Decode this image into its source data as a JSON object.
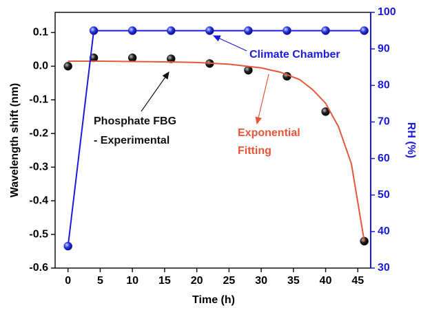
{
  "chart_data": {
    "type": "line",
    "x_label": "Time (h)",
    "y_label": "Wavelength shift (nm)",
    "y2_label": "RH (%)",
    "xlim": [
      -2,
      47
    ],
    "xticks": [
      0,
      5,
      10,
      15,
      20,
      25,
      30,
      35,
      40,
      45
    ],
    "ylim": [
      -0.6,
      0.16
    ],
    "yticks": [
      -0.6,
      -0.5,
      -0.4,
      -0.3,
      -0.2,
      -0.1,
      {
        "value": 0,
        "label": "0.0"
      },
      0.1
    ],
    "y2lim": [
      30,
      100
    ],
    "y2ticks": [
      30,
      40,
      50,
      60,
      70,
      80,
      90,
      100
    ],
    "series": [
      {
        "color": "#111111",
        "style": "markers",
        "x": [
          0,
          4,
          10,
          16,
          22,
          28,
          34,
          40,
          46
        ],
        "values": [
          0.0,
          0.025,
          0.025,
          0.022,
          0.008,
          -0.012,
          -0.03,
          -0.135,
          -0.52
        ]
      },
      {
        "color": "#e8563a",
        "style": "line",
        "x": [
          0,
          5,
          10,
          15,
          20,
          25,
          30,
          33,
          36,
          38,
          40,
          42,
          44,
          46
        ],
        "values": [
          0.015,
          0.015,
          0.014,
          0.013,
          0.011,
          0.006,
          -0.005,
          -0.018,
          -0.04,
          -0.07,
          -0.11,
          -0.18,
          -0.29,
          -0.52
        ]
      },
      {
        "color": "#1a1adf",
        "style": "line-markers",
        "axis": "y2",
        "x": [
          0,
          4,
          10,
          16,
          22,
          28,
          34,
          40,
          46
        ],
        "values": [
          36,
          95,
          95,
          95,
          95,
          95,
          95,
          95,
          95
        ]
      }
    ],
    "annotations": [
      "Climate Chamber",
      "Phosphate FBG",
      "- Experimental",
      "Exponential",
      "Fitting"
    ]
  }
}
